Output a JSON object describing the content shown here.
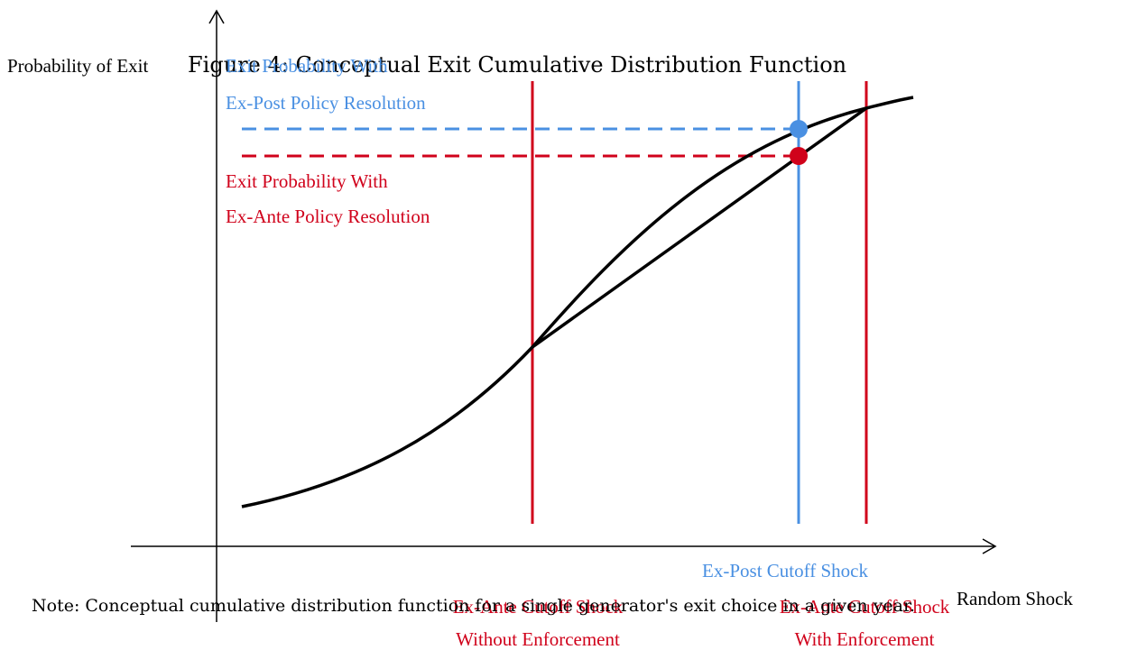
{
  "figure": {
    "title": "Figure 4: Conceptual Exit Cumulative Distribution Function",
    "y_axis_label": "Probability of Exit",
    "x_axis_label": "Random Shock",
    "ex_post_probability": [
      "Exit Probability With",
      "Ex-Post Policy Resolution"
    ],
    "ex_ante_probability": [
      "Exit Probability With",
      "Ex-Ante Policy Resolution"
    ],
    "ex_post_cutoff": [
      "Ex-Post Cutoff Shock"
    ],
    "ex_ante_cutoff_without": [
      "Ex-Ante Cutoff Shock",
      "Without Enforcement"
    ],
    "ex_ante_cutoff_with": [
      "Ex-Ante Cutoff Shock",
      "With Enforcement"
    ],
    "note": "Note: Conceptual cumulative distribution function for a single generator's exit choice in a given year."
  }
}
